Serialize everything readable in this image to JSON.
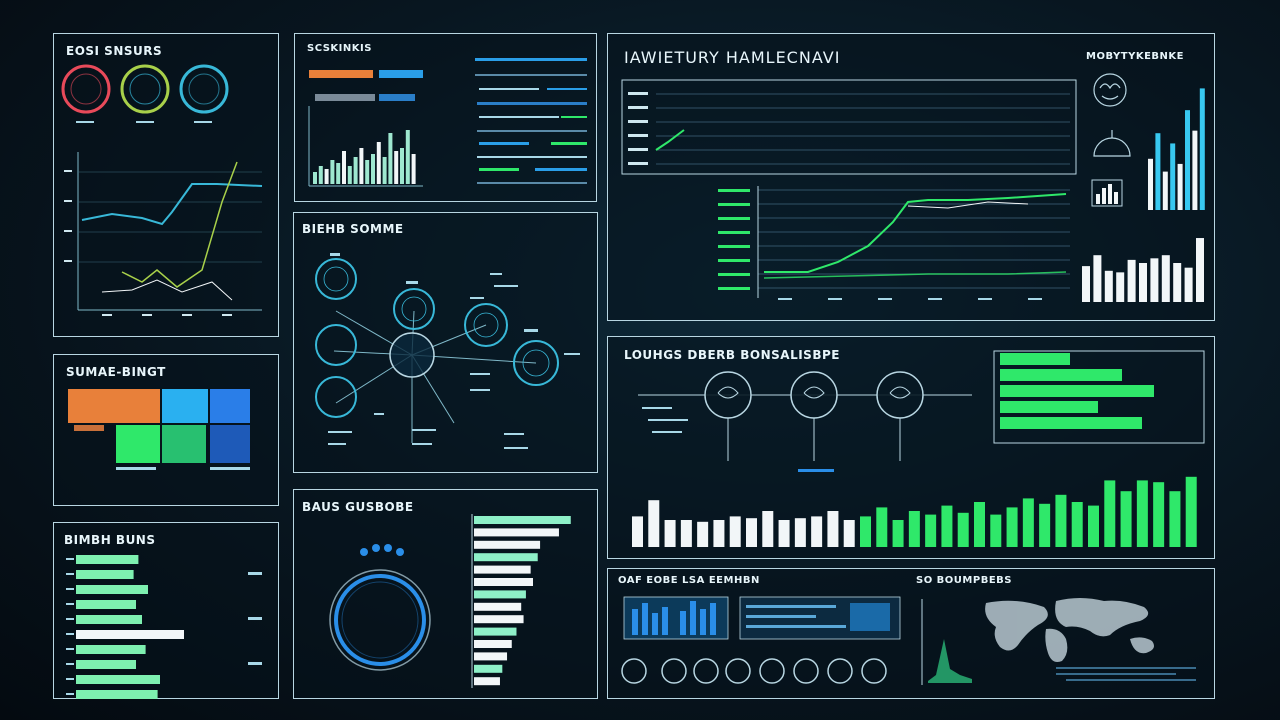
{
  "panels": {
    "top_left": {
      "title": "EOSI SNSURS",
      "rings": [
        {
          "color": "#e84a5a"
        },
        {
          "color": "#a8d04a"
        },
        {
          "color": "#38b8d8"
        }
      ]
    },
    "top_mid": {
      "title": "SCSKINKIS"
    },
    "node_panel": {
      "title": "BIEHB SOMME"
    },
    "main": {
      "title": "IAWIETURY HAMLECNAVI",
      "subtitle": "MOBYTYKEBNKE"
    },
    "bottom_left_a": {
      "title": "SUMAE-BINGT"
    },
    "bottom_left_b": {
      "title": "BIMBH BUNS"
    },
    "gauge_panel": {
      "title": "BAUS GUSBOBE"
    },
    "mid_right": {
      "title": "LOUHGS DBERB BONSALISBPE"
    },
    "bottom_right": {
      "title": "OAF EOBE LSA EEMHBN",
      "map_title": "SO BOUMPBEBS"
    }
  },
  "colors": {
    "green": "#2fe86a",
    "blue": "#2a8ee8",
    "cyan": "#38c8f0",
    "orange": "#e8803a",
    "white": "#f2f6f8",
    "frame": "#b8d6e2"
  },
  "charts": {
    "mid_right_bars": [
      0.34,
      0.52,
      0.3,
      0.3,
      0.28,
      0.3,
      0.34,
      0.32,
      0.4,
      0.3,
      0.32,
      0.34,
      0.4,
      0.3,
      0.34,
      0.44,
      0.3,
      0.4,
      0.36,
      0.46,
      0.38,
      0.5,
      0.36,
      0.44,
      0.54,
      0.48,
      0.58,
      0.5,
      0.46,
      0.74,
      0.62,
      0.74,
      0.72,
      0.62,
      0.78
    ],
    "bottom_left_b_bars": [
      0.52,
      0.48,
      0.6,
      0.5,
      0.55,
      0.9,
      0.58,
      0.5,
      0.7,
      0.68
    ],
    "gauge_panel_bars": [
      0.82,
      0.72,
      0.56,
      0.54,
      0.48,
      0.5,
      0.44,
      0.4,
      0.42,
      0.36,
      0.32,
      0.28,
      0.24,
      0.22
    ],
    "main_white_bars": [
      0.46,
      0.6,
      0.4,
      0.38,
      0.54,
      0.5,
      0.56,
      0.6,
      0.5,
      0.44,
      0.82
    ],
    "main_side_bars": [
      0.4,
      0.6,
      0.3,
      0.52,
      0.36,
      0.78,
      0.62,
      0.95
    ],
    "top_mid_hist": [
      0.2,
      0.3,
      0.25,
      0.4,
      0.35,
      0.55,
      0.3,
      0.45,
      0.6,
      0.4,
      0.5,
      0.7,
      0.45,
      0.85,
      0.55,
      0.6,
      0.9,
      0.5
    ]
  }
}
